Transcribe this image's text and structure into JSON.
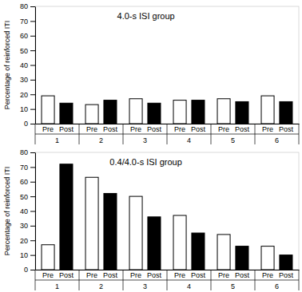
{
  "chart_data": [
    {
      "type": "bar",
      "title": "4.0-s ISI group",
      "y_label": "Percentage of reinforced ITI",
      "categories": [
        "1",
        "2",
        "3",
        "4",
        "5",
        "6"
      ],
      "series": [
        {
          "name": "Pre",
          "color": "#ffffff",
          "values": [
            19,
            13,
            17,
            16,
            17,
            19
          ]
        },
        {
          "name": "Post",
          "color": "#000000",
          "values": [
            14,
            16,
            14,
            16,
            15,
            15
          ]
        }
      ],
      "ylim": [
        0,
        80
      ],
      "yticks": [
        0,
        10,
        20,
        30,
        40,
        50,
        60,
        70,
        80
      ],
      "grid": false
    },
    {
      "type": "bar",
      "title": "0.4/4.0-s ISI group",
      "y_label": "Percentage of reinforced ITI",
      "categories": [
        "1",
        "2",
        "3",
        "4",
        "5",
        "6"
      ],
      "series": [
        {
          "name": "Pre",
          "color": "#ffffff",
          "values": [
            17,
            63,
            50,
            37,
            24,
            16
          ]
        },
        {
          "name": "Post",
          "color": "#000000",
          "values": [
            72,
            52,
            36,
            25,
            16,
            10
          ]
        }
      ],
      "ylim": [
        0,
        80
      ],
      "yticks": [
        0,
        10,
        20,
        30,
        40,
        50,
        60,
        70,
        80
      ],
      "grid": false
    }
  ]
}
